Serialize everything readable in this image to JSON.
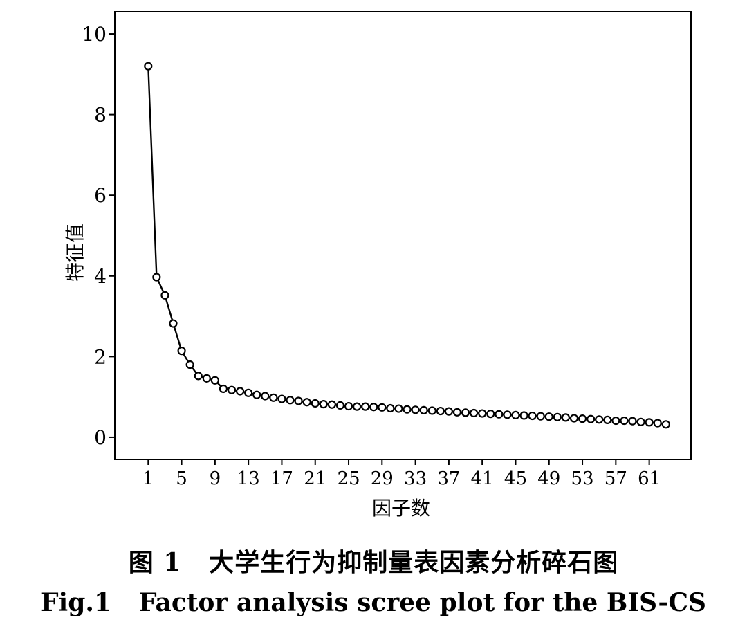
{
  "chart_data": {
    "type": "line",
    "xlabel": "因子数",
    "ylabel": "特征值",
    "x": [
      1,
      2,
      3,
      4,
      5,
      6,
      7,
      8,
      9,
      10,
      11,
      12,
      13,
      14,
      15,
      16,
      17,
      18,
      19,
      20,
      21,
      22,
      23,
      24,
      25,
      26,
      27,
      28,
      29,
      30,
      31,
      32,
      33,
      34,
      35,
      36,
      37,
      38,
      39,
      40,
      41,
      42,
      43,
      44,
      45,
      46,
      47,
      48,
      49,
      50,
      51,
      52,
      53,
      54,
      55,
      56,
      57,
      58,
      59,
      60,
      61,
      62,
      63
    ],
    "values": [
      9.2,
      3.97,
      3.52,
      2.82,
      2.14,
      1.8,
      1.52,
      1.46,
      1.41,
      1.2,
      1.17,
      1.14,
      1.1,
      1.05,
      1.02,
      0.98,
      0.95,
      0.92,
      0.9,
      0.87,
      0.84,
      0.82,
      0.81,
      0.79,
      0.77,
      0.76,
      0.76,
      0.75,
      0.74,
      0.72,
      0.71,
      0.69,
      0.68,
      0.67,
      0.66,
      0.65,
      0.64,
      0.62,
      0.61,
      0.6,
      0.59,
      0.58,
      0.57,
      0.56,
      0.55,
      0.54,
      0.53,
      0.52,
      0.51,
      0.5,
      0.49,
      0.47,
      0.46,
      0.45,
      0.44,
      0.43,
      0.41,
      0.41,
      0.4,
      0.38,
      0.37,
      0.35,
      0.32
    ],
    "xticks": [
      1,
      5,
      9,
      13,
      17,
      21,
      25,
      29,
      33,
      37,
      41,
      45,
      49,
      53,
      57,
      61
    ],
    "yticks": [
      0,
      2,
      4,
      6,
      8,
      10
    ],
    "xlim": [
      -3,
      66
    ],
    "ylim": [
      -0.55,
      10.55
    ],
    "grid": false,
    "markers": "open-circle"
  },
  "caption": {
    "cn_label": "图 1",
    "cn_title": "大学生行为抑制量表因素分析碎石图",
    "en_label": "Fig.1",
    "en_title": "Factor analysis scree plot for the BIS-CS"
  },
  "colors": {
    "line": "#000000",
    "background": "#ffffff"
  }
}
